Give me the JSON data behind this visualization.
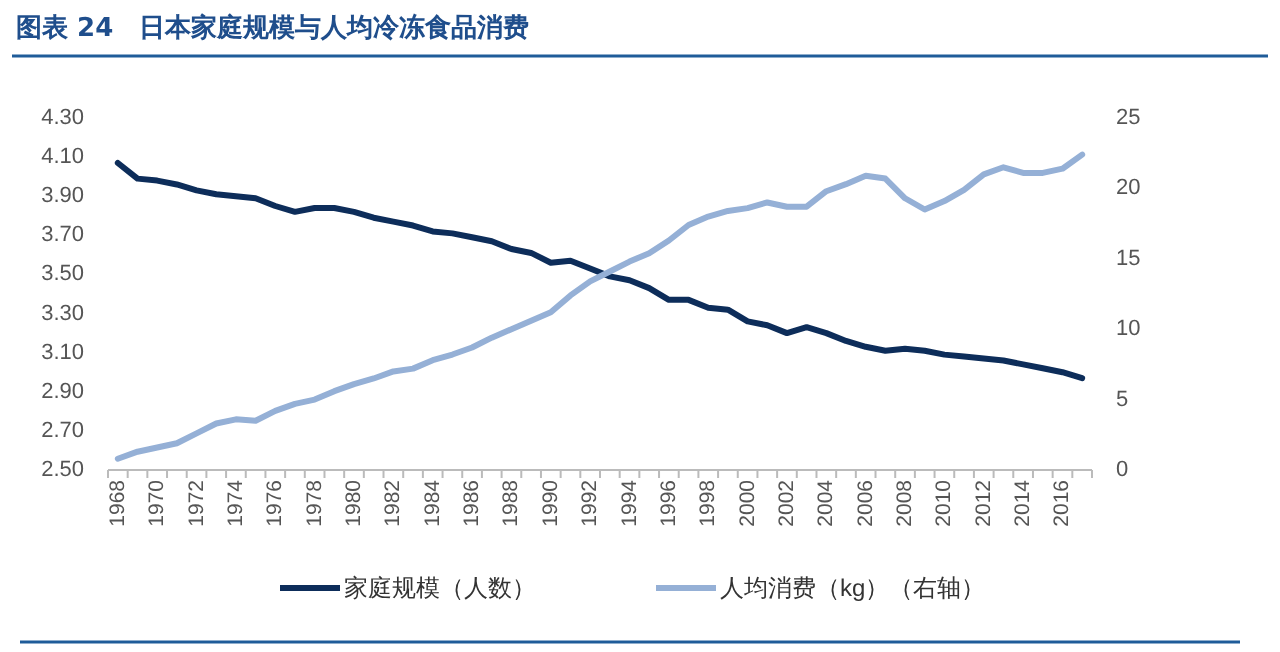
{
  "chart_data": {
    "type": "line",
    "title": "图表 24　日本家庭规模与人均冷冻食品消费",
    "categories": [
      "1968",
      null,
      "1970",
      null,
      "1972",
      null,
      "1974",
      null,
      "1976",
      null,
      "1978",
      null,
      "1980",
      null,
      "1982",
      null,
      "1984",
      null,
      "1986",
      null,
      "1988",
      null,
      "1990",
      null,
      "1992",
      null,
      "1994",
      null,
      "1996",
      null,
      "1998",
      null,
      "2000",
      null,
      "2002",
      null,
      "2004",
      null,
      "2006",
      null,
      "2008",
      null,
      "2010",
      null,
      "2012",
      null,
      "2014",
      null,
      "2016",
      null
    ],
    "series": [
      {
        "name": "家庭规模（人数）",
        "color": "#0d2d5a",
        "values": [
          4.07,
          3.99,
          3.98,
          3.96,
          3.93,
          3.91,
          3.9,
          3.89,
          3.85,
          3.82,
          3.84,
          3.84,
          3.82,
          3.79,
          3.77,
          3.75,
          3.72,
          3.71,
          3.69,
          3.67,
          3.63,
          3.61,
          3.56,
          3.57,
          3.53,
          3.49,
          3.47,
          3.43,
          3.37,
          3.37,
          3.33,
          3.32,
          3.26,
          3.24,
          3.2,
          3.23,
          3.2,
          3.16,
          3.13,
          3.11,
          3.12,
          3.11,
          3.09,
          3.08,
          3.07,
          3.06,
          3.04,
          3.02,
          3.0,
          2.97
        ]
      },
      {
        "name": "人均消费（kg）（右轴）",
        "color": "#95b0d6",
        "axis": "y2",
        "values": [
          0.8,
          1.3,
          1.6,
          1.9,
          2.6,
          3.3,
          3.6,
          3.5,
          4.2,
          4.7,
          5.0,
          5.6,
          6.1,
          6.5,
          7.0,
          7.2,
          7.8,
          8.2,
          8.7,
          9.4,
          10.0,
          10.6,
          11.2,
          12.4,
          13.4,
          14.1,
          14.8,
          15.4,
          16.3,
          17.4,
          18.0,
          18.4,
          18.6,
          19.0,
          18.7,
          18.7,
          19.8,
          20.3,
          20.9,
          20.7,
          19.3,
          18.5,
          19.1,
          19.9,
          21.0,
          21.5,
          21.1,
          21.1,
          21.4,
          22.4
        ]
      }
    ],
    "ylim": [
      2.5,
      4.3
    ],
    "yticks": [
      {
        "value": 2.5,
        "label": "2.50"
      },
      {
        "value": 2.7,
        "label": "2.70"
      },
      {
        "value": 2.9,
        "label": "2.90"
      },
      {
        "value": 3.1,
        "label": "3.10"
      },
      {
        "value": 3.3,
        "label": "3.30"
      },
      {
        "value": 3.5,
        "label": "3.50"
      },
      {
        "value": 3.7,
        "label": "3.70"
      },
      {
        "value": 3.9,
        "label": "3.90"
      },
      {
        "value": 4.1,
        "label": "4.10"
      },
      {
        "value": 4.3,
        "label": "4.30"
      }
    ],
    "y2lim": [
      0,
      25
    ],
    "y2ticks": [
      0,
      5,
      10,
      15,
      20,
      25
    ],
    "legend": "bottom",
    "grid": false,
    "marker": "none",
    "line_style": "solid"
  }
}
